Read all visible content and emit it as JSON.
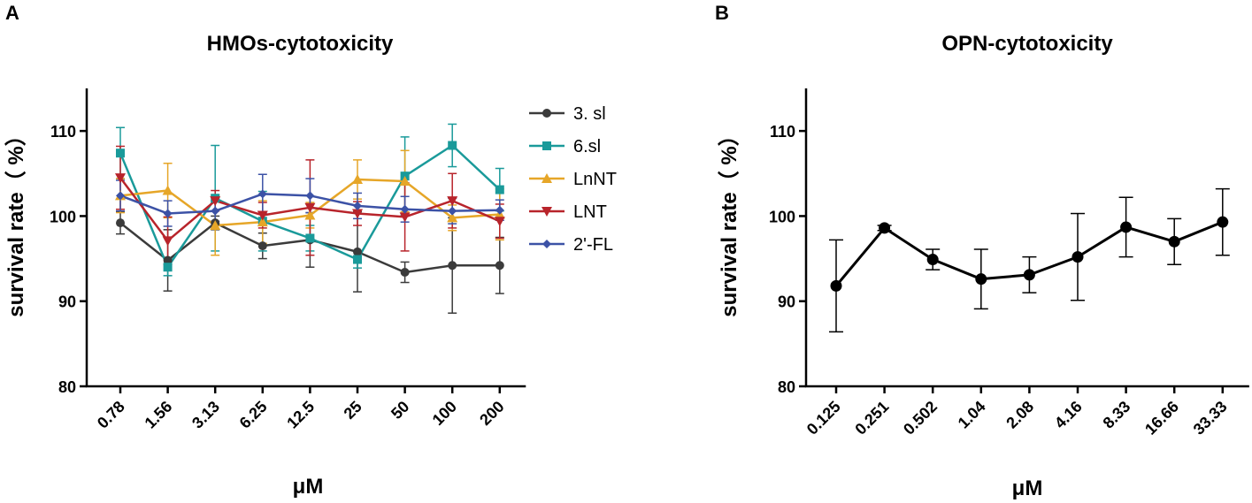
{
  "chart_data": [
    {
      "panel": "A",
      "type": "line",
      "title": "HMOs-cytotoxicity",
      "xlabel": "μM",
      "ylabel": "survival rate（ %）",
      "categories": [
        "0.78",
        "1.56",
        "3.13",
        "6.25",
        "12.5",
        "25",
        "50",
        "100",
        "200"
      ],
      "ylim": [
        80,
        115
      ],
      "yticks": [
        80,
        90,
        100,
        110
      ],
      "legend_position": "right",
      "series": [
        {
          "name": "3. sl",
          "color": "#3b3b3b",
          "marker": "circle",
          "values": [
            99.2,
            94.8,
            99.2,
            96.5,
            97.2,
            95.8,
            93.4,
            94.2,
            94.2
          ],
          "errors": [
            1.3,
            3.6,
            0.8,
            1.5,
            3.2,
            4.7,
            1.2,
            5.6,
            3.3
          ]
        },
        {
          "name": "6.sl",
          "color": "#1a9a9a",
          "marker": "square",
          "values": [
            107.4,
            94.0,
            102.1,
            99.4,
            97.4,
            94.9,
            104.7,
            108.3,
            103.1
          ],
          "errors": [
            3.0,
            1.0,
            6.2,
            3.5,
            1.5,
            1.0,
            4.6,
            2.5,
            2.5
          ]
        },
        {
          "name": "LnNT",
          "color": "#e6a628",
          "marker": "triangle-up",
          "values": [
            102.4,
            103.0,
            98.9,
            99.3,
            100.1,
            104.3,
            104.1,
            99.8,
            100.2
          ],
          "errors": [
            2.0,
            3.2,
            3.5,
            2.5,
            1.5,
            2.3,
            3.6,
            1.5,
            3.0
          ]
        },
        {
          "name": "LNT",
          "color": "#b8242b",
          "marker": "triangle-down",
          "values": [
            104.5,
            97.1,
            101.8,
            100.1,
            101.0,
            100.3,
            99.9,
            101.8,
            99.4
          ],
          "errors": [
            3.7,
            2.8,
            1.2,
            1.5,
            5.6,
            1.4,
            4.0,
            3.2,
            2.0
          ]
        },
        {
          "name": "2'-FL",
          "color": "#3c52a6",
          "marker": "diamond",
          "values": [
            102.4,
            100.3,
            100.6,
            102.6,
            102.4,
            101.2,
            100.8,
            100.6,
            100.7
          ],
          "errors": [
            1.8,
            1.5,
            1.2,
            2.3,
            2.0,
            1.5,
            1.5,
            1.5,
            1.2
          ]
        }
      ]
    },
    {
      "panel": "B",
      "type": "line",
      "title": "OPN-cytotoxicity",
      "xlabel": "μM",
      "ylabel": "survival rate（ %）",
      "categories": [
        "0.125",
        "0.251",
        "0.502",
        "1.04",
        "2.08",
        "4.16",
        "8.33",
        "16.66",
        "33.33"
      ],
      "ylim": [
        80,
        115
      ],
      "yticks": [
        80,
        90,
        100,
        110
      ],
      "series": [
        {
          "name": "OPN",
          "color": "#000000",
          "marker": "circle",
          "values": [
            91.8,
            98.6,
            94.9,
            92.6,
            93.1,
            95.2,
            98.7,
            97.0,
            99.3
          ],
          "errors": [
            5.4,
            0.3,
            1.2,
            3.5,
            2.1,
            5.1,
            3.5,
            2.7,
            3.9
          ]
        }
      ]
    }
  ]
}
